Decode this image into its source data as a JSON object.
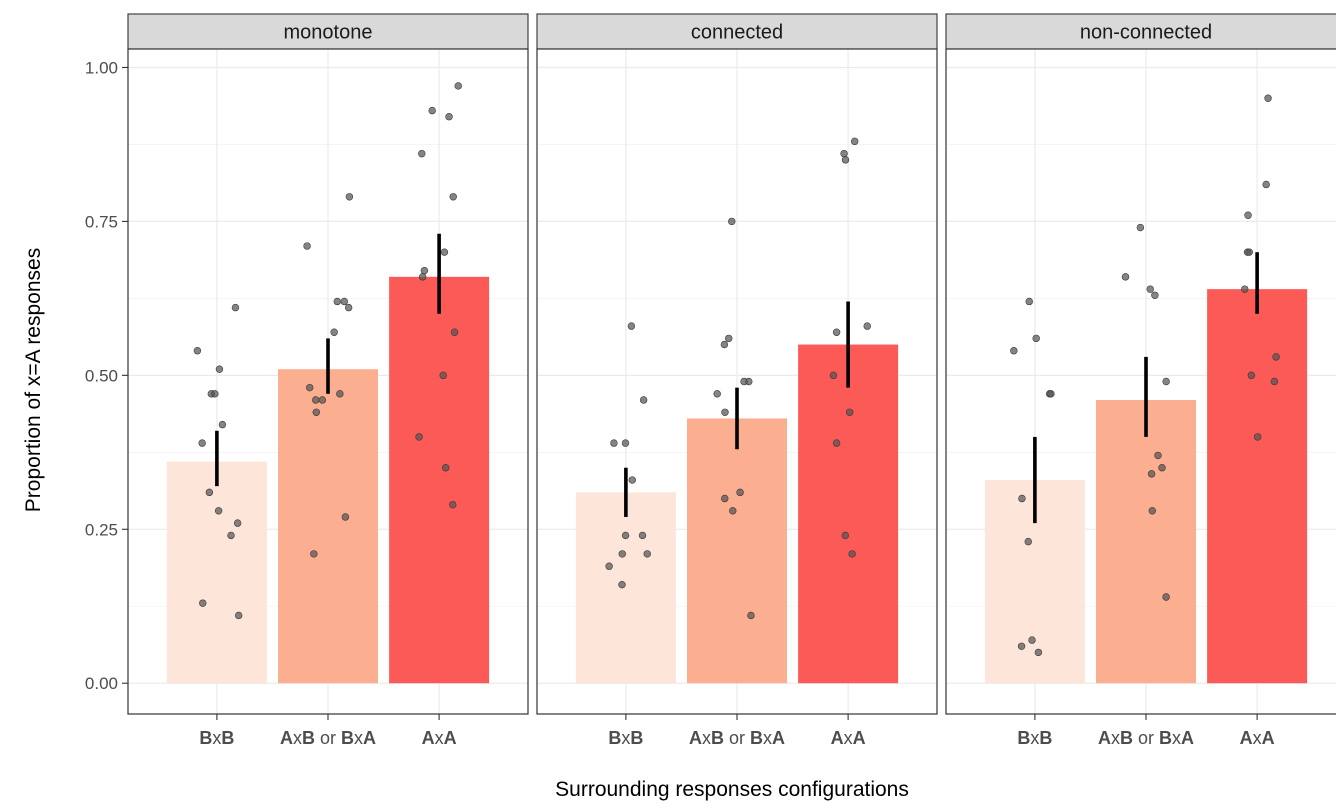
{
  "chart_data": {
    "type": "bar",
    "xlabel": "Surrounding responses configurations",
    "ylabel": "Proportion of x=A responses",
    "ylim": [
      -0.05,
      1.03
    ],
    "yticks": [
      "0.00",
      "0.25",
      "0.50",
      "0.75",
      "1.00"
    ],
    "ytick_values": [
      0,
      0.25,
      0.5,
      0.75,
      1.0
    ],
    "grid": true,
    "categories": [
      {
        "parts": [
          {
            "t": "B",
            "b": true
          },
          {
            "t": "x",
            "b": false
          },
          {
            "t": "B",
            "b": true
          }
        ]
      },
      {
        "parts": [
          {
            "t": "A",
            "b": true
          },
          {
            "t": "x",
            "b": false
          },
          {
            "t": "B",
            "b": true
          },
          {
            "t": " or ",
            "b": false
          },
          {
            "t": "B",
            "b": true
          },
          {
            "t": "x",
            "b": false
          },
          {
            "t": "A",
            "b": true
          }
        ]
      },
      {
        "parts": [
          {
            "t": "A",
            "b": true
          },
          {
            "t": "x",
            "b": false
          },
          {
            "t": "A",
            "b": true
          }
        ]
      }
    ],
    "bar_colors": [
      "#fee5d9",
      "#fcae91",
      "#fb5a56"
    ],
    "panels": [
      {
        "title": "monotone",
        "bars": [
          {
            "value": 0.36,
            "err": [
              0.32,
              0.41
            ],
            "points": [
              0.61,
              0.54,
              0.51,
              0.47,
              0.47,
              0.42,
              0.39,
              0.31,
              0.28,
              0.26,
              0.24,
              0.13,
              0.11
            ]
          },
          {
            "value": 0.51,
            "err": [
              0.47,
              0.56
            ],
            "points": [
              0.79,
              0.71,
              0.62,
              0.62,
              0.61,
              0.57,
              0.48,
              0.47,
              0.46,
              0.46,
              0.44,
              0.27,
              0.21
            ]
          },
          {
            "value": 0.66,
            "err": [
              0.6,
              0.73
            ],
            "points": [
              0.97,
              0.93,
              0.92,
              0.86,
              0.79,
              0.7,
              0.67,
              0.66,
              0.57,
              0.5,
              0.4,
              0.35,
              0.29
            ]
          }
        ]
      },
      {
        "title": "connected",
        "bars": [
          {
            "value": 0.31,
            "err": [
              0.27,
              0.35
            ],
            "points": [
              0.58,
              0.46,
              0.39,
              0.39,
              0.33,
              0.24,
              0.24,
              0.21,
              0.21,
              0.19,
              0.16
            ]
          },
          {
            "value": 0.43,
            "err": [
              0.38,
              0.48
            ],
            "points": [
              0.75,
              0.56,
              0.55,
              0.49,
              0.49,
              0.47,
              0.44,
              0.31,
              0.3,
              0.28,
              0.11
            ]
          },
          {
            "value": 0.55,
            "err": [
              0.48,
              0.62
            ],
            "points": [
              0.88,
              0.86,
              0.85,
              0.58,
              0.57,
              0.5,
              0.44,
              0.39,
              0.24,
              0.21
            ]
          }
        ]
      },
      {
        "title": "non-connected",
        "bars": [
          {
            "value": 0.33,
            "err": [
              0.26,
              0.4
            ],
            "points": [
              0.62,
              0.56,
              0.54,
              0.47,
              0.47,
              0.3,
              0.23,
              0.07,
              0.06,
              0.05
            ]
          },
          {
            "value": 0.46,
            "err": [
              0.4,
              0.53
            ],
            "points": [
              0.74,
              0.66,
              0.64,
              0.63,
              0.49,
              0.37,
              0.35,
              0.34,
              0.28,
              0.14
            ]
          },
          {
            "value": 0.64,
            "err": [
              0.6,
              0.7
            ],
            "points": [
              0.95,
              0.81,
              0.76,
              0.7,
              0.7,
              0.64,
              0.53,
              0.5,
              0.49,
              0.4
            ]
          }
        ]
      }
    ]
  }
}
